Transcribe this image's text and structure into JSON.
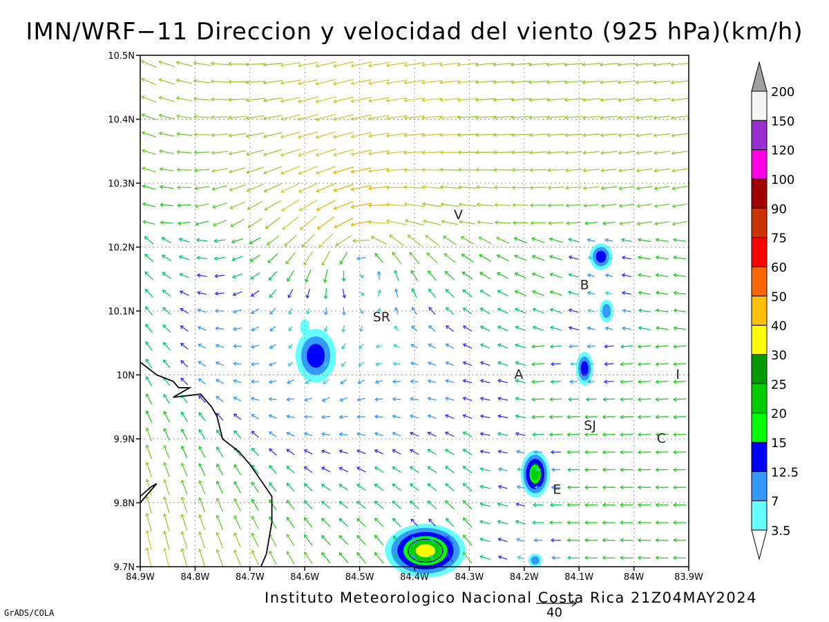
{
  "title": "IMN/WRF−11 Direccion y velocidad del viento (925 hPa)(km/h)",
  "credit": "Instituto Meteorologico Nacional Costa Rica 21Z04MAY2024",
  "software": "GrADS/COLA",
  "reference_vector": {
    "value": "40"
  },
  "axes": {
    "lon_labels": [
      "84.9W",
      "84.8W",
      "84.7W",
      "84.6W",
      "84.5W",
      "84.4W",
      "84.3W",
      "84.2W",
      "84.1W",
      "84W",
      "83.9W"
    ],
    "lon_values": [
      -84.9,
      -84.8,
      -84.7,
      -84.6,
      -84.5,
      -84.4,
      -84.3,
      -84.2,
      -84.1,
      -84.0,
      -83.9
    ],
    "lat_labels": [
      "10.5N",
      "10.4N",
      "10.3N",
      "10.2N",
      "10.1N",
      "10N",
      "9.9N",
      "9.8N",
      "9.7N"
    ],
    "lat_values": [
      10.5,
      10.4,
      10.3,
      10.2,
      10.1,
      10.0,
      9.9,
      9.8,
      9.7
    ],
    "lon_range": [
      -84.9,
      -83.9
    ],
    "lat_range": [
      9.7,
      10.5
    ],
    "grid": true
  },
  "places": [
    {
      "label": "V",
      "lon": -84.32,
      "lat": 10.25
    },
    {
      "label": "SR",
      "lon": -84.46,
      "lat": 10.09
    },
    {
      "label": "B",
      "lon": -84.09,
      "lat": 10.14
    },
    {
      "label": "A",
      "lon": -84.21,
      "lat": 10.0
    },
    {
      "label": "I",
      "lon": -83.92,
      "lat": 10.0
    },
    {
      "label": "SJ",
      "lon": -84.08,
      "lat": 9.92
    },
    {
      "label": "C",
      "lon": -83.95,
      "lat": 9.9
    },
    {
      "label": "E",
      "lon": -84.14,
      "lat": 9.82
    }
  ],
  "legend": {
    "labels": [
      "200",
      "150",
      "120",
      "100",
      "90",
      "75",
      "60",
      "50",
      "40",
      "30",
      "25",
      "20",
      "15",
      "12.5",
      "7",
      "3.5"
    ],
    "colors": [
      "#f5f5f5",
      "#9a30d0",
      "#ff00e6",
      "#a00000",
      "#cc3300",
      "#ff0000",
      "#ff6600",
      "#ffc000",
      "#ffff00",
      "#009900",
      "#00cc00",
      "#00ff00",
      "#0000ff",
      "#3399ff",
      "#66ffff"
    ],
    "top_cap": "#a0a0a0",
    "bottom_cap": "#ffffff"
  },
  "coastline": [
    [
      -84.9,
      10.02
    ],
    [
      -84.87,
      10.0
    ],
    [
      -84.84,
      9.99
    ],
    [
      -84.83,
      9.98
    ],
    [
      -84.81,
      9.98
    ],
    [
      -84.84,
      9.965
    ],
    [
      -84.79,
      9.97
    ],
    [
      -84.77,
      9.95
    ],
    [
      -84.76,
      9.935
    ],
    [
      -84.75,
      9.9
    ],
    [
      -84.72,
      9.88
    ],
    [
      -84.7,
      9.86
    ],
    [
      -84.68,
      9.835
    ],
    [
      -84.66,
      9.81
    ],
    [
      -84.66,
      9.77
    ],
    [
      -84.67,
      9.72
    ],
    [
      -84.68,
      9.7
    ]
  ],
  "coastline2": [
    [
      -84.9,
      9.81
    ],
    [
      -84.88,
      9.825
    ],
    [
      -84.87,
      9.83
    ],
    [
      -84.9,
      9.8
    ]
  ],
  "calm_cells": [
    {
      "lon": -84.58,
      "lat": 10.03,
      "rx": 0.035,
      "ry": 0.04,
      "level": "12.5"
    },
    {
      "lon": -84.38,
      "lat": 9.725,
      "rx": 0.07,
      "ry": 0.04,
      "level": "30"
    },
    {
      "lon": -84.18,
      "lat": 9.845,
      "rx": 0.025,
      "ry": 0.035,
      "level": "20"
    },
    {
      "lon": -84.09,
      "lat": 10.01,
      "rx": 0.015,
      "ry": 0.025,
      "level": "12.5"
    },
    {
      "lon": -84.06,
      "lat": 10.185,
      "rx": 0.02,
      "ry": 0.02,
      "level": "12.5"
    },
    {
      "lon": -84.05,
      "lat": 10.1,
      "rx": 0.012,
      "ry": 0.017,
      "level": "7"
    },
    {
      "lon": -84.18,
      "lat": 9.71,
      "rx": 0.012,
      "ry": 0.01,
      "level": "7"
    },
    {
      "lon": -84.6,
      "lat": 10.075,
      "rx": 0.008,
      "ry": 0.012,
      "level": "3.5"
    }
  ]
}
